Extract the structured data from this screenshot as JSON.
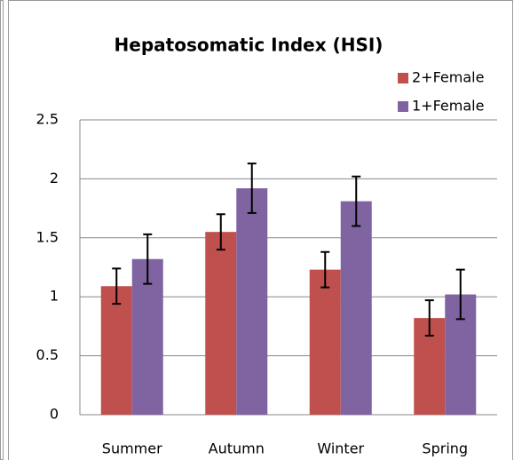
{
  "chart_data": {
    "type": "bar",
    "title": "Hepatosomatic Index (HSI)",
    "categories": [
      "Summer",
      "Autumn",
      "Winter",
      "Spring"
    ],
    "series": [
      {
        "name": "2+Female",
        "color": "#c0504d",
        "values": [
          1.09,
          1.55,
          1.23,
          0.82
        ],
        "errors": [
          0.15,
          0.15,
          0.15,
          0.15
        ]
      },
      {
        "name": "1+Female",
        "color": "#8064a2",
        "values": [
          1.32,
          1.92,
          1.81,
          1.02
        ],
        "errors": [
          0.21,
          0.21,
          0.21,
          0.21
        ]
      }
    ],
    "ylim": [
      0,
      2.5
    ],
    "yticks": [
      0,
      0.5,
      1,
      1.5,
      2,
      2.5
    ],
    "grid": true,
    "legend": "top-right"
  }
}
